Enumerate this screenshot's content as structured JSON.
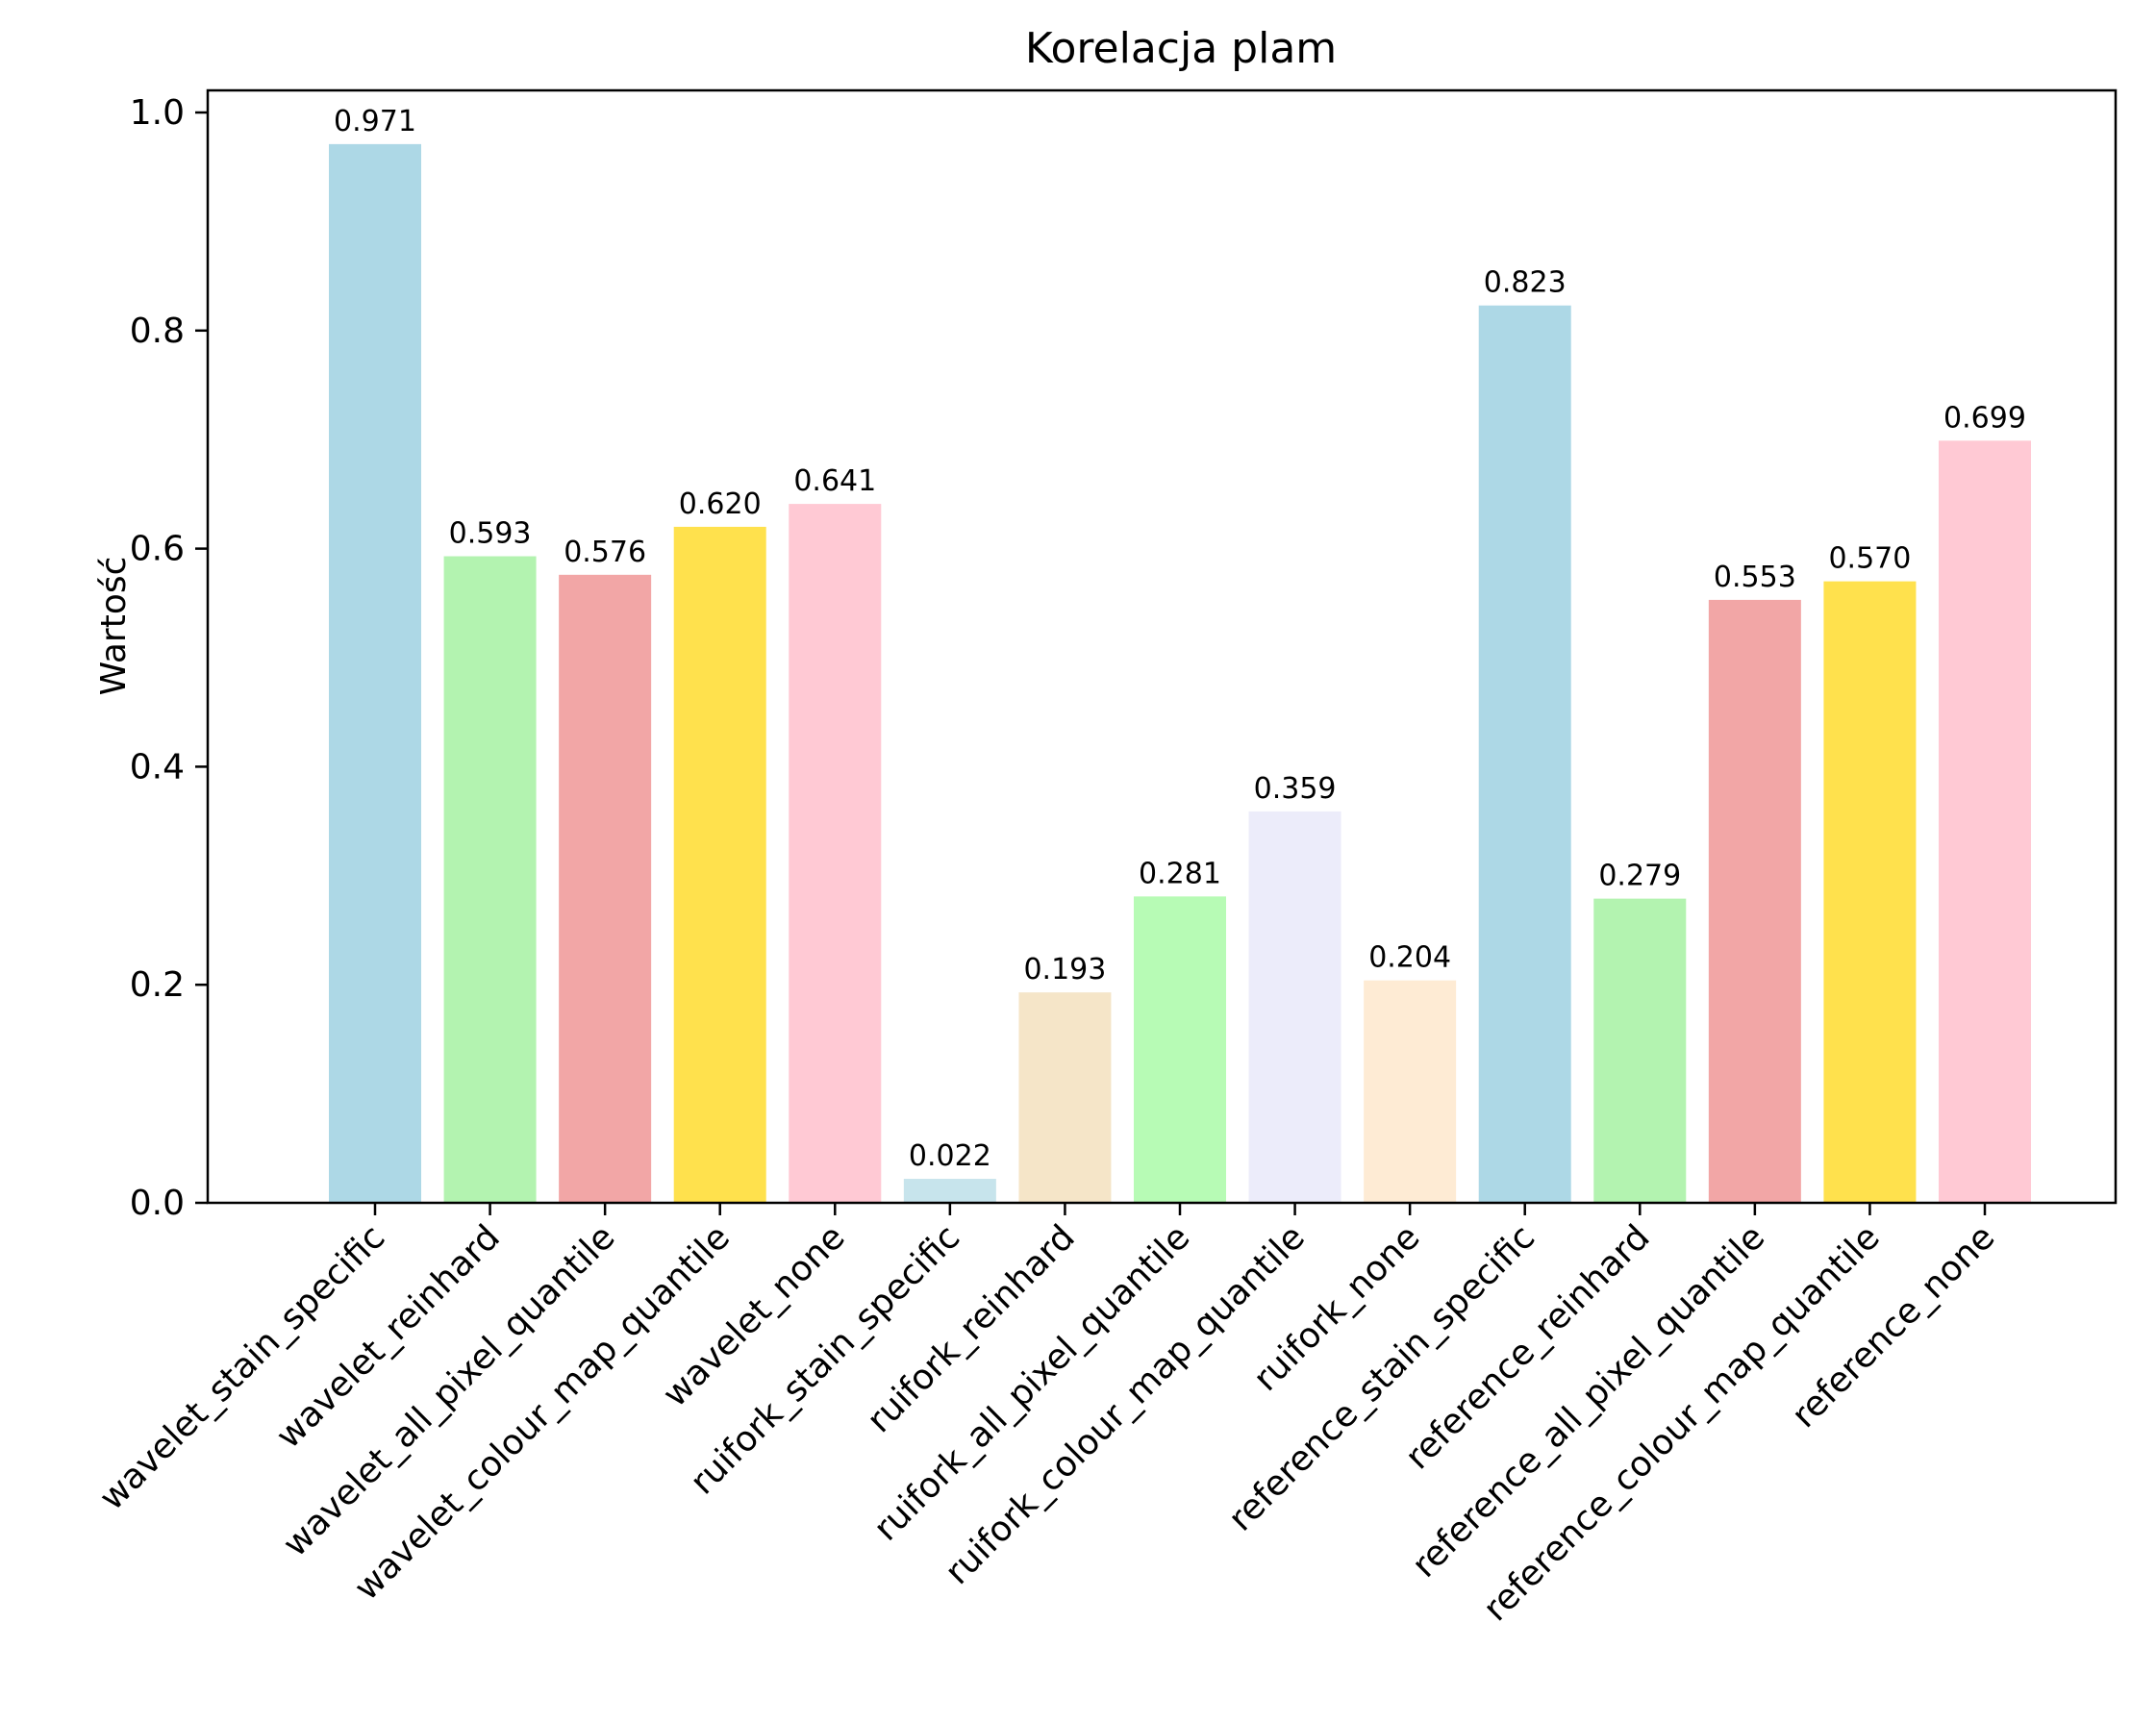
{
  "chart_data": {
    "type": "bar",
    "title": "Korelacja plam",
    "xlabel": "",
    "ylabel": "Wartość",
    "ylim": [
      0,
      1.0
    ],
    "yticks": [
      "0.0",
      "0.2",
      "0.4",
      "0.6",
      "0.8",
      "1.0"
    ],
    "ytick_values": [
      0.0,
      0.2,
      0.4,
      0.6,
      0.8,
      1.0
    ],
    "grid": false,
    "categories": [
      "wavelet_stain_specific",
      "wavelet_reinhard",
      "wavelet_all_pixel_quantile",
      "wavelet_colour_map_quantile",
      "wavelet_none",
      "ruifork_stain_specific",
      "ruifork_reinhard",
      "ruifork_all_pixel_quantile",
      "ruifork_colour_map_quantile",
      "ruifork_none",
      "reference_stain_specific",
      "reference_reinhard",
      "reference_all_pixel_quantile",
      "reference_colour_map_quantile",
      "reference_none"
    ],
    "values": [
      0.971,
      0.593,
      0.576,
      0.62,
      0.641,
      0.022,
      0.193,
      0.281,
      0.359,
      0.204,
      0.823,
      0.279,
      0.553,
      0.57,
      0.699
    ],
    "value_labels": [
      "0.971",
      "0.593",
      "0.576",
      "0.620",
      "0.641",
      "0.022",
      "0.193",
      "0.281",
      "0.359",
      "0.204",
      "0.823",
      "0.279",
      "0.553",
      "0.570",
      "0.699"
    ],
    "colors": [
      "#add8e6",
      "#b3f3b0",
      "#f2a6a6",
      "#ffe14d",
      "#ffc9d4",
      "#c7e4ec",
      "#f5e5c8",
      "#b7fbb5",
      "#ececfa",
      "#feebd4",
      "#add8e6",
      "#b3f3b0",
      "#f2a6a6",
      "#ffe14d",
      "#ffc9d4"
    ]
  }
}
